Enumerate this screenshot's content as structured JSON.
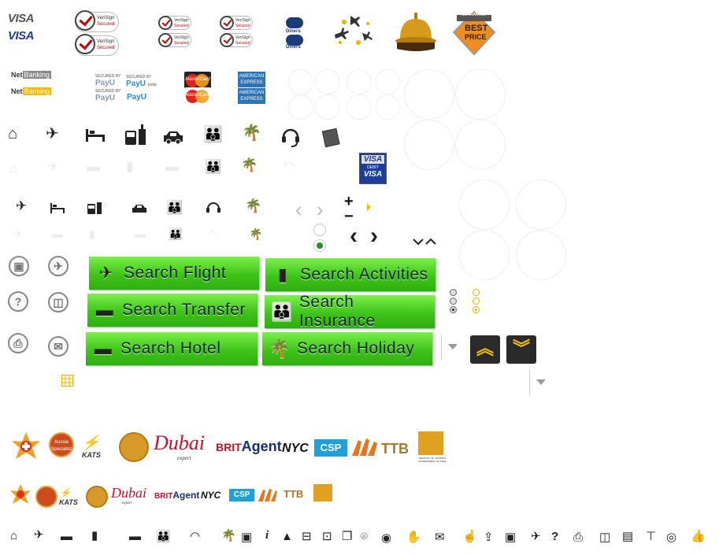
{
  "payments": {
    "visa": "VISA",
    "verisign_top": "VeriSign",
    "verisign_bottom": "Secured",
    "diners": "Diners",
    "best_price_top": "GUARANTEE",
    "best_price_main": "BEST",
    "best_price_sub": "PRICE",
    "net_banking_prefix": "Net",
    "net_banking_suffix": "Banking",
    "payu_secured": "SECURED BY",
    "payu": "PayU",
    "payu_india": "India",
    "mastercard": "MasterCard",
    "amex": "AMERICAN EXPRESS",
    "visa_debit": "VISA",
    "debit": "DEBIT"
  },
  "controls": {
    "plus": "+",
    "minus": "−"
  },
  "search_buttons": {
    "flight": "Search Flight",
    "activities": "Search Activities",
    "transfer": "Search Transfer",
    "insurance": "Search Insurance",
    "hotel": "Search Hotel",
    "holiday": "Search Holiday"
  },
  "partners": {
    "kats": "KATS",
    "dubai": "Dubai",
    "dubai_sub": "expert",
    "brit": "BRIT",
    "agent": "Agent",
    "nyc": "NYC",
    "csp": "CSP",
    "ttb": "TTB",
    "aussie": "Aussie Specialist",
    "ministry": "MINISTRY OF TOURISM GOVERNMENT OF INDIA"
  },
  "colors": {
    "green": "#3fc41a",
    "gold": "#f5c000",
    "visa_blue": "#1a3d9e"
  }
}
